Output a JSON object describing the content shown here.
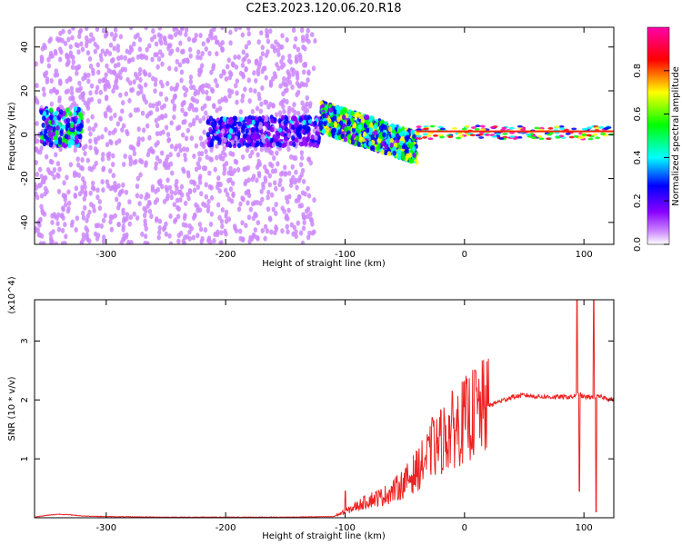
{
  "title": "C2E3.2023.120.06.20.R18",
  "chart_data": [
    {
      "type": "heatmap",
      "title": "C2E3.2023.120.06.20.R18",
      "xlabel": "Height of straight line (km)",
      "ylabel": "Frequency (Hz)",
      "xlim": [
        -360,
        125
      ],
      "ylim": [
        -50,
        49
      ],
      "x_ticks": [
        -300,
        -200,
        -100,
        0,
        100
      ],
      "y_ticks": [
        -40,
        -20,
        0,
        20,
        40
      ],
      "colorbar": {
        "label": "Normalized spectral amplitude",
        "range": [
          0.0,
          1.0
        ],
        "ticks": [
          0.0,
          0.2,
          0.4,
          0.6,
          0.8
        ],
        "colors": [
          "#ffffff",
          "#cc88ff",
          "#8800ff",
          "#0000ff",
          "#00ffff",
          "#00ff00",
          "#ffff00",
          "#ff0000",
          "#ff00aa"
        ]
      },
      "regions": [
        {
          "x": [
            -360,
            -125
          ],
          "y": [
            -50,
            49
          ],
          "amplitude": 0.2,
          "pattern": "scattered-noise"
        },
        {
          "x": [
            -355,
            -320
          ],
          "y": [
            -5,
            12
          ],
          "amplitude": 0.5,
          "pattern": "cluster"
        },
        {
          "x": [
            -215,
            -120
          ],
          "y": [
            -5,
            8
          ],
          "amplitude": 0.35,
          "pattern": "band"
        },
        {
          "x": [
            -120,
            -40
          ],
          "y": [
            -20,
            15
          ],
          "amplitude": 0.6,
          "pattern": "band"
        },
        {
          "x": [
            -40,
            125
          ],
          "y": [
            -2,
            4
          ],
          "amplitude": 0.85,
          "pattern": "narrow-line"
        }
      ]
    },
    {
      "type": "line",
      "xlabel": "Height of straight line (km)",
      "ylabel": "SNR (10 * v/v)",
      "y_multiplier_label": "(x10^4)",
      "xlim": [
        -360,
        125
      ],
      "ylim": [
        0,
        3.7
      ],
      "x_ticks": [
        -300,
        -200,
        -100,
        0,
        100
      ],
      "y_ticks": [
        1,
        2,
        3
      ],
      "color": "#ee2222",
      "series": [
        {
          "x": [
            -360,
            -350,
            -340,
            -330,
            -320,
            -300,
            -250,
            -200,
            -150,
            -110,
            -100,
            -90,
            -80,
            -70,
            -60,
            -50,
            -40,
            -30,
            -20,
            -10,
            0,
            10,
            20,
            30,
            40,
            50,
            60,
            70,
            80,
            90,
            95,
            100,
            105,
            110,
            115,
            125
          ],
          "y": [
            0.01,
            0.04,
            0.06,
            0.05,
            0.03,
            0.02,
            0.01,
            0.01,
            0.01,
            0.02,
            0.1,
            0.2,
            0.3,
            0.35,
            0.45,
            0.6,
            0.8,
            1.05,
            1.3,
            1.5,
            1.65,
            1.8,
            1.9,
            1.98,
            2.05,
            2.08,
            2.06,
            2.05,
            2.05,
            2.05,
            2.1,
            2.05,
            2.05,
            2.05,
            2.05,
            2.0
          ]
        }
      ],
      "spikes": [
        {
          "x": 94,
          "y": 3.7
        },
        {
          "x": 96,
          "y": 0.45
        },
        {
          "x": 108,
          "y": 3.7
        },
        {
          "x": 110,
          "y": 0.1
        },
        {
          "x": 9,
          "y": 2.5
        },
        {
          "x": -27,
          "y": 1.7
        },
        {
          "x": -100,
          "y": 0.45
        }
      ]
    }
  ]
}
